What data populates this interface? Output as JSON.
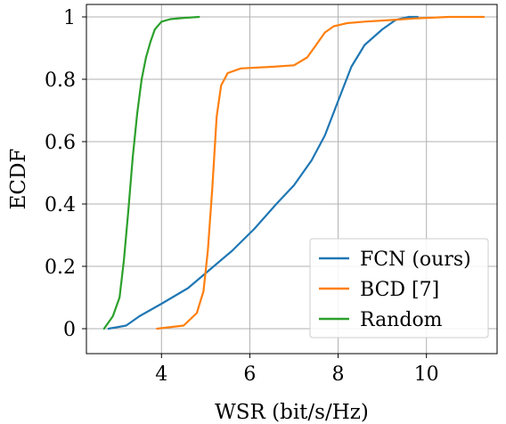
{
  "chart_data": {
    "type": "line",
    "xlabel": "WSR (bit/s/Hz)",
    "ylabel": "ECDF",
    "xlim": [
      2.3,
      11.6
    ],
    "ylim": [
      -0.08,
      1.04
    ],
    "xticks": [
      4,
      6,
      8,
      10
    ],
    "yticks": [
      0,
      0.2,
      0.4,
      0.6,
      0.8,
      1
    ],
    "ytick_labels": [
      "0",
      "0.2",
      "0.4",
      "0.6",
      "0.8",
      "1"
    ],
    "grid": true,
    "legend_position": "bottom-right",
    "series": [
      {
        "name": "FCN (ours)",
        "color": "#1f77b4",
        "x": [
          2.8,
          3.2,
          3.5,
          4.0,
          4.6,
          5.1,
          5.6,
          6.1,
          6.6,
          7.0,
          7.4,
          7.7,
          8.0,
          8.3,
          8.6,
          9.0,
          9.3,
          9.6,
          9.8
        ],
        "y": [
          0,
          0.01,
          0.04,
          0.08,
          0.13,
          0.19,
          0.25,
          0.32,
          0.4,
          0.46,
          0.54,
          0.62,
          0.73,
          0.84,
          0.91,
          0.96,
          0.99,
          1.0,
          1.0
        ]
      },
      {
        "name": "BCD [7]",
        "color": "#ff7f0e",
        "x": [
          3.9,
          4.5,
          4.8,
          4.95,
          5.05,
          5.15,
          5.25,
          5.35,
          5.5,
          5.8,
          6.5,
          7.0,
          7.3,
          7.5,
          7.7,
          7.9,
          8.2,
          8.6,
          9.2,
          9.7,
          10.5,
          11.3
        ],
        "y": [
          0,
          0.01,
          0.05,
          0.12,
          0.25,
          0.45,
          0.68,
          0.78,
          0.82,
          0.835,
          0.84,
          0.845,
          0.87,
          0.91,
          0.95,
          0.97,
          0.98,
          0.985,
          0.99,
          0.995,
          1.0,
          1.0
        ]
      },
      {
        "name": "Random",
        "color": "#2ca02c",
        "x": [
          2.7,
          2.9,
          3.05,
          3.15,
          3.25,
          3.35,
          3.45,
          3.55,
          3.65,
          3.75,
          3.85,
          4.0,
          4.2,
          4.5,
          4.85
        ],
        "y": [
          0,
          0.04,
          0.1,
          0.22,
          0.38,
          0.55,
          0.69,
          0.8,
          0.87,
          0.92,
          0.96,
          0.985,
          0.993,
          0.997,
          1.0
        ]
      }
    ]
  }
}
